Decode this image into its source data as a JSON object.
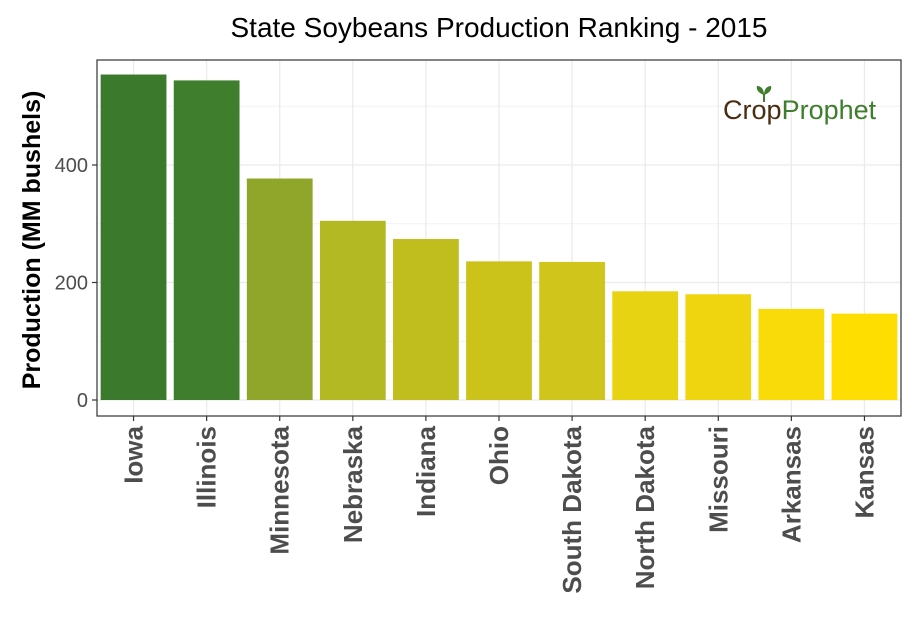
{
  "chart_data": {
    "type": "bar",
    "title": "State Soybeans Production Ranking - 2015",
    "ylabel": "Production (MM bushels)",
    "xlabel": "",
    "categories": [
      "Iowa",
      "Illinois",
      "Minnesota",
      "Nebraska",
      "Indiana",
      "Ohio",
      "South Dakota",
      "North Dakota",
      "Missouri",
      "Arkansas",
      "Kansas"
    ],
    "values": [
      554,
      544,
      377,
      305,
      274,
      236,
      235,
      185,
      180,
      155,
      147
    ],
    "colors": [
      "#3b7a2c",
      "#3e7e2c",
      "#8fa62a",
      "#b3b923",
      "#c0bd1e",
      "#ccc31a",
      "#d0c51a",
      "#e8d312",
      "#eed510",
      "#f8db08",
      "#fdde00"
    ],
    "ylim": [
      0,
      575
    ],
    "yticks": [
      0,
      200,
      400
    ],
    "grid": true,
    "legend": "none"
  },
  "logo": {
    "part1": "Cr",
    "part2": "o",
    "part3": "p",
    "part4": "Prophet",
    "color_dark": "#4a2c10",
    "color_green": "#3e7e2c"
  }
}
